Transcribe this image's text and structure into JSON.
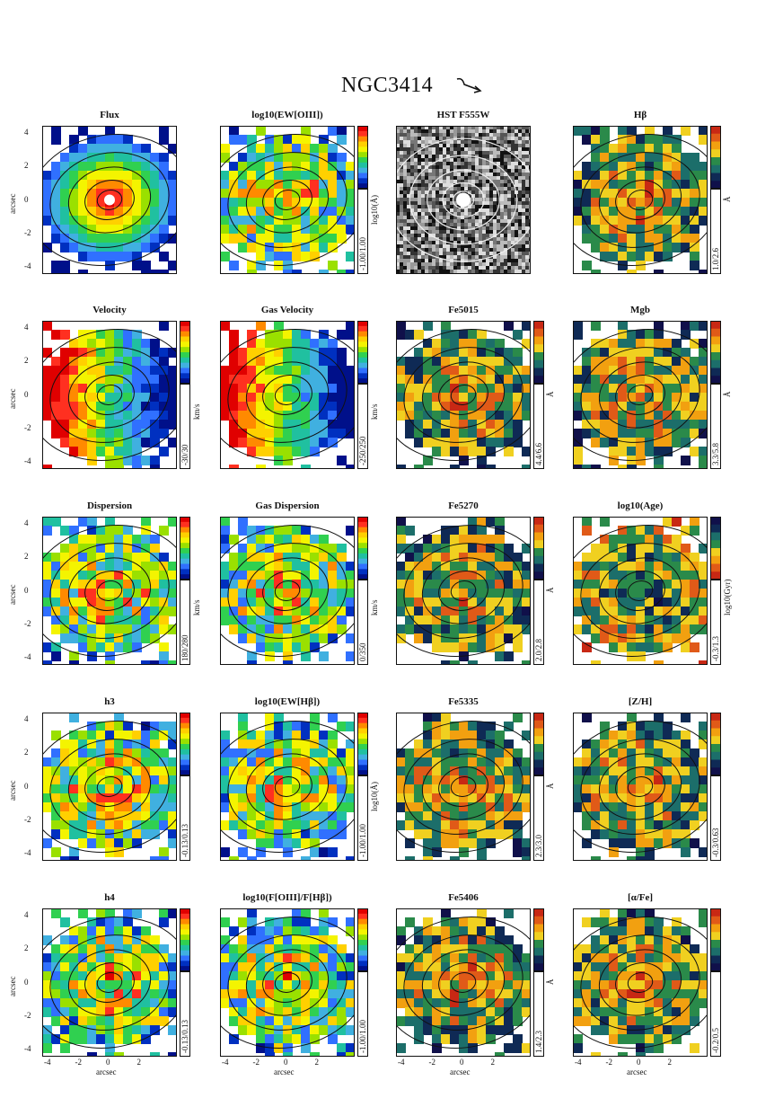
{
  "title": "NGC3414",
  "arrow_icon": "north-east-arrow-icon",
  "x_axis_label": "arcsec",
  "y_axis_label": "arcsec",
  "axis_ticks": [
    "-4",
    "-2",
    "0",
    "2",
    "4"
  ],
  "chart_data": [
    {
      "type": "heatmap",
      "title": "Flux",
      "colormap": "rainbow",
      "cbar_range": "",
      "cbar_unit": ""
    },
    {
      "type": "heatmap",
      "title": "log10(EW[OIII])",
      "colormap": "rainbow",
      "cbar_range": "-1.00/1.00",
      "cbar_unit": "log10(Å)"
    },
    {
      "type": "heatmap",
      "title": "HST F555W",
      "colormap": "gray",
      "cbar_range": "",
      "cbar_unit": ""
    },
    {
      "type": "heatmap",
      "title": "Hβ",
      "colormap": "index",
      "cbar_range": "1.0/2.6",
      "cbar_unit": "Å"
    },
    {
      "type": "heatmap",
      "title": "Velocity",
      "colormap": "rainbow",
      "cbar_range": "-30/30",
      "cbar_unit": "km/s"
    },
    {
      "type": "heatmap",
      "title": "Gas Velocity",
      "colormap": "rainbow",
      "cbar_range": "-250/250",
      "cbar_unit": "km/s"
    },
    {
      "type": "heatmap",
      "title": "Fe5015",
      "colormap": "index",
      "cbar_range": "4.4/6.6",
      "cbar_unit": "Å"
    },
    {
      "type": "heatmap",
      "title": "Mgb",
      "colormap": "index",
      "cbar_range": "3.3/5.8",
      "cbar_unit": "Å"
    },
    {
      "type": "heatmap",
      "title": "Dispersion",
      "colormap": "rainbow",
      "cbar_range": "180/280",
      "cbar_unit": "km/s"
    },
    {
      "type": "heatmap",
      "title": "Gas Dispersion",
      "colormap": "rainbow",
      "cbar_range": "0/350",
      "cbar_unit": "km/s"
    },
    {
      "type": "heatmap",
      "title": "Fe5270",
      "colormap": "index",
      "cbar_range": "2.0/2.8",
      "cbar_unit": "Å"
    },
    {
      "type": "heatmap",
      "title": "log10(Age)",
      "colormap": "index-rev",
      "cbar_range": "-0.3/1.3",
      "cbar_unit": "log10(Gyr)"
    },
    {
      "type": "heatmap",
      "title": "h3",
      "colormap": "rainbow",
      "cbar_range": "-0.13/0.13",
      "cbar_unit": ""
    },
    {
      "type": "heatmap",
      "title": "log10(EW[Hβ])",
      "colormap": "rainbow",
      "cbar_range": "-1.00/1.00",
      "cbar_unit": "log10(Å)"
    },
    {
      "type": "heatmap",
      "title": "Fe5335",
      "colormap": "index",
      "cbar_range": "2.3/3.0",
      "cbar_unit": "Å"
    },
    {
      "type": "heatmap",
      "title": "[Z/H]",
      "colormap": "index",
      "cbar_range": "-0.3/0.63",
      "cbar_unit": ""
    },
    {
      "type": "heatmap",
      "title": "h4",
      "colormap": "rainbow",
      "cbar_range": "-0.13/0.13",
      "cbar_unit": ""
    },
    {
      "type": "heatmap",
      "title": "log10(F[OIII]/F[Hβ])",
      "colormap": "rainbow",
      "cbar_range": "-1.00/1.00",
      "cbar_unit": ""
    },
    {
      "type": "heatmap",
      "title": "Fe5406",
      "colormap": "index",
      "cbar_range": "1.4/2.3",
      "cbar_unit": "Å"
    },
    {
      "type": "heatmap",
      "title": "[α/Fe]",
      "colormap": "index",
      "cbar_range": "-0.2/0.5",
      "cbar_unit": ""
    }
  ]
}
